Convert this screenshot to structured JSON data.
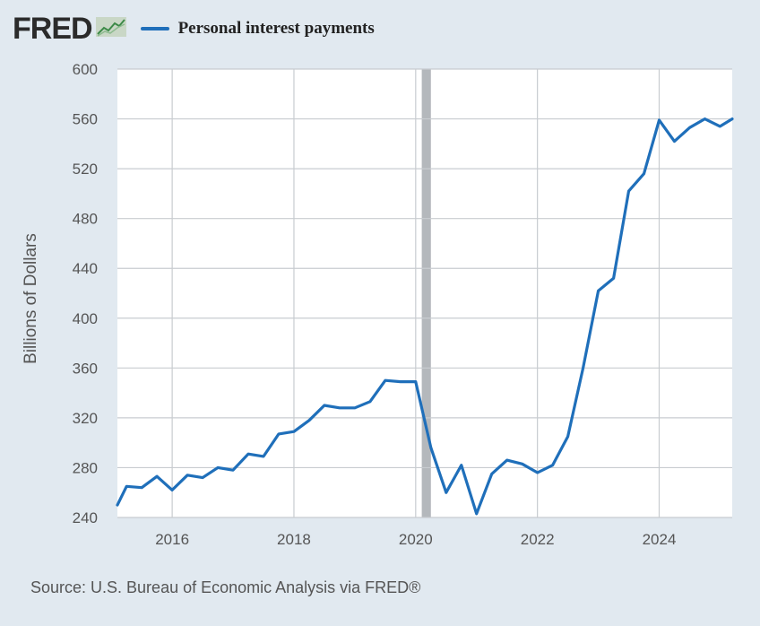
{
  "header": {
    "logo_text": "FRED",
    "logo_icon": "line-chart-icon",
    "legend_label": "Personal interest payments",
    "legend_color": "#1f6fba"
  },
  "source": "Source: U.S. Bureau of Economic Analysis via FRED®",
  "colors": {
    "background": "#e1e9f0",
    "plot_background": "#ffffff",
    "line": "#1f6fba",
    "grid": "#c8ccd0",
    "recession": "#b4b8bc"
  },
  "chart_data": {
    "type": "line",
    "title": "",
    "xlabel": "",
    "ylabel": "Billions of Dollars",
    "xlim": [
      2015.1,
      2025.2
    ],
    "ylim": [
      240,
      600
    ],
    "yticks": [
      240,
      280,
      320,
      360,
      400,
      440,
      480,
      520,
      560,
      600
    ],
    "xticks": [
      2016,
      2018,
      2020,
      2022,
      2024
    ],
    "grid": true,
    "legend_position": "top",
    "recession_shading": [
      [
        2020.1,
        2020.25
      ]
    ],
    "series": [
      {
        "name": "Personal interest payments",
        "x": [
          2015.1,
          2015.25,
          2015.5,
          2015.75,
          2016.0,
          2016.25,
          2016.5,
          2016.75,
          2017.0,
          2017.25,
          2017.5,
          2017.75,
          2018.0,
          2018.25,
          2018.5,
          2018.75,
          2019.0,
          2019.25,
          2019.5,
          2019.75,
          2020.0,
          2020.25,
          2020.5,
          2020.75,
          2021.0,
          2021.25,
          2021.5,
          2021.75,
          2022.0,
          2022.25,
          2022.5,
          2022.75,
          2023.0,
          2023.25,
          2023.5,
          2023.75,
          2024.0,
          2024.25,
          2024.5,
          2024.75,
          2025.0,
          2025.2
        ],
        "values": [
          250,
          265,
          264,
          273,
          262,
          274,
          272,
          280,
          278,
          291,
          289,
          307,
          309,
          318,
          330,
          328,
          328,
          333,
          350,
          349,
          349,
          296,
          260,
          282,
          243,
          275,
          286,
          283,
          276,
          282,
          305,
          360,
          422,
          432,
          502,
          516,
          559,
          542,
          553,
          560,
          554,
          560
        ]
      }
    ]
  }
}
